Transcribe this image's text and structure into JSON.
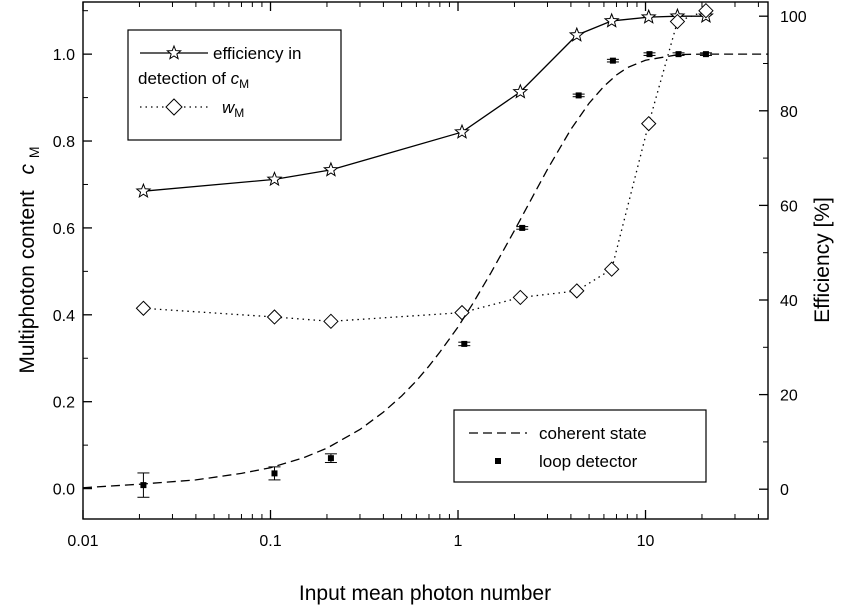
{
  "chart_data": {
    "type": "line",
    "xlabel": "Input mean photon number",
    "ylabel_left": "Multiphoton content",
    "ylabel_left_symbol": "c",
    "ylabel_left_subscript": "M",
    "ylabel_right": "Efficiency [%]",
    "xscale": "log",
    "xlim": [
      0.01,
      45
    ],
    "ylim_left": [
      -0.07,
      1.12
    ],
    "ylim_right": [
      -6.3,
      103
    ],
    "x_ticks": [
      {
        "value": 0.01,
        "label": "0.01"
      },
      {
        "value": 0.1,
        "label": "0.1"
      },
      {
        "value": 1,
        "label": "1"
      },
      {
        "value": 10,
        "label": "10"
      }
    ],
    "y_left_ticks": [
      {
        "value": 0.0,
        "label": "0.0"
      },
      {
        "value": 0.2,
        "label": "0.2"
      },
      {
        "value": 0.4,
        "label": "0.4"
      },
      {
        "value": 0.6,
        "label": "0.6"
      },
      {
        "value": 0.8,
        "label": "0.8"
      },
      {
        "value": 1.0,
        "label": "1.0"
      }
    ],
    "y_right_ticks": [
      {
        "value": 0,
        "label": "0"
      },
      {
        "value": 20,
        "label": "20"
      },
      {
        "value": 40,
        "label": "40"
      },
      {
        "value": 60,
        "label": "60"
      },
      {
        "value": 80,
        "label": "80"
      },
      {
        "value": 100,
        "label": "100"
      }
    ],
    "grid": false,
    "legends": [
      {
        "placement": "top-left",
        "entries": [
          {
            "series": "efficiency",
            "text": "efficiency in",
            "text2": "detection of ",
            "symbol": "c",
            "subscript": "M"
          },
          {
            "series": "w_m",
            "text": "",
            "symbol": "w",
            "subscript": "M"
          }
        ]
      },
      {
        "placement": "bottom-right",
        "entries": [
          {
            "series": "coherent",
            "text": "coherent state"
          },
          {
            "series": "loop",
            "text": "loop detector"
          }
        ]
      }
    ],
    "series": [
      {
        "id": "efficiency",
        "axis": "right",
        "style": "solid",
        "marker": "star",
        "x": [
          0.021,
          0.105,
          0.21,
          1.05,
          2.15,
          4.3,
          6.6,
          10.4,
          14.8,
          21
        ],
        "y": [
          63,
          65.5,
          67.5,
          75.5,
          84,
          96,
          99,
          99.8,
          100,
          100
        ]
      },
      {
        "id": "w_m",
        "axis": "left",
        "style": "dotted",
        "marker": "diamond",
        "x": [
          0.021,
          0.105,
          0.21,
          1.05,
          2.15,
          4.3,
          6.6,
          10.4,
          14.8,
          21
        ],
        "y": [
          0.415,
          0.395,
          0.385,
          0.405,
          0.44,
          0.455,
          0.505,
          0.84,
          1.075,
          1.1
        ]
      },
      {
        "id": "coherent",
        "axis": "left",
        "style": "dashed",
        "marker": "none",
        "x": [
          0.01,
          0.02,
          0.04,
          0.07,
          0.1,
          0.15,
          0.2,
          0.3,
          0.4,
          0.5,
          0.6,
          0.7,
          0.8,
          1.0,
          1.2,
          1.5,
          2.0,
          2.5,
          3.0,
          4.0,
          5.0,
          6.0,
          7.0,
          8.0,
          10.0,
          15.0,
          20.0,
          45.0
        ],
        "y": [
          0.002,
          0.01,
          0.02,
          0.035,
          0.048,
          0.071,
          0.093,
          0.136,
          0.176,
          0.213,
          0.248,
          0.282,
          0.314,
          0.372,
          0.426,
          0.497,
          0.594,
          0.672,
          0.735,
          0.827,
          0.887,
          0.926,
          0.952,
          0.969,
          0.986,
          0.999,
          1.0,
          1.0
        ]
      },
      {
        "id": "loop",
        "axis": "left",
        "style": "none",
        "marker": "square",
        "x": [
          0.021,
          0.105,
          0.21,
          1.08,
          2.2,
          4.4,
          6.7,
          10.5,
          15,
          21
        ],
        "y": [
          0.008,
          0.035,
          0.07,
          0.333,
          0.6,
          0.905,
          0.985,
          1.0,
          1.0,
          1.0
        ],
        "err": [
          0.028,
          0.015,
          0.01,
          0.004,
          0.003,
          0.003,
          0.003,
          0.003,
          0.003,
          0.003
        ]
      }
    ]
  }
}
